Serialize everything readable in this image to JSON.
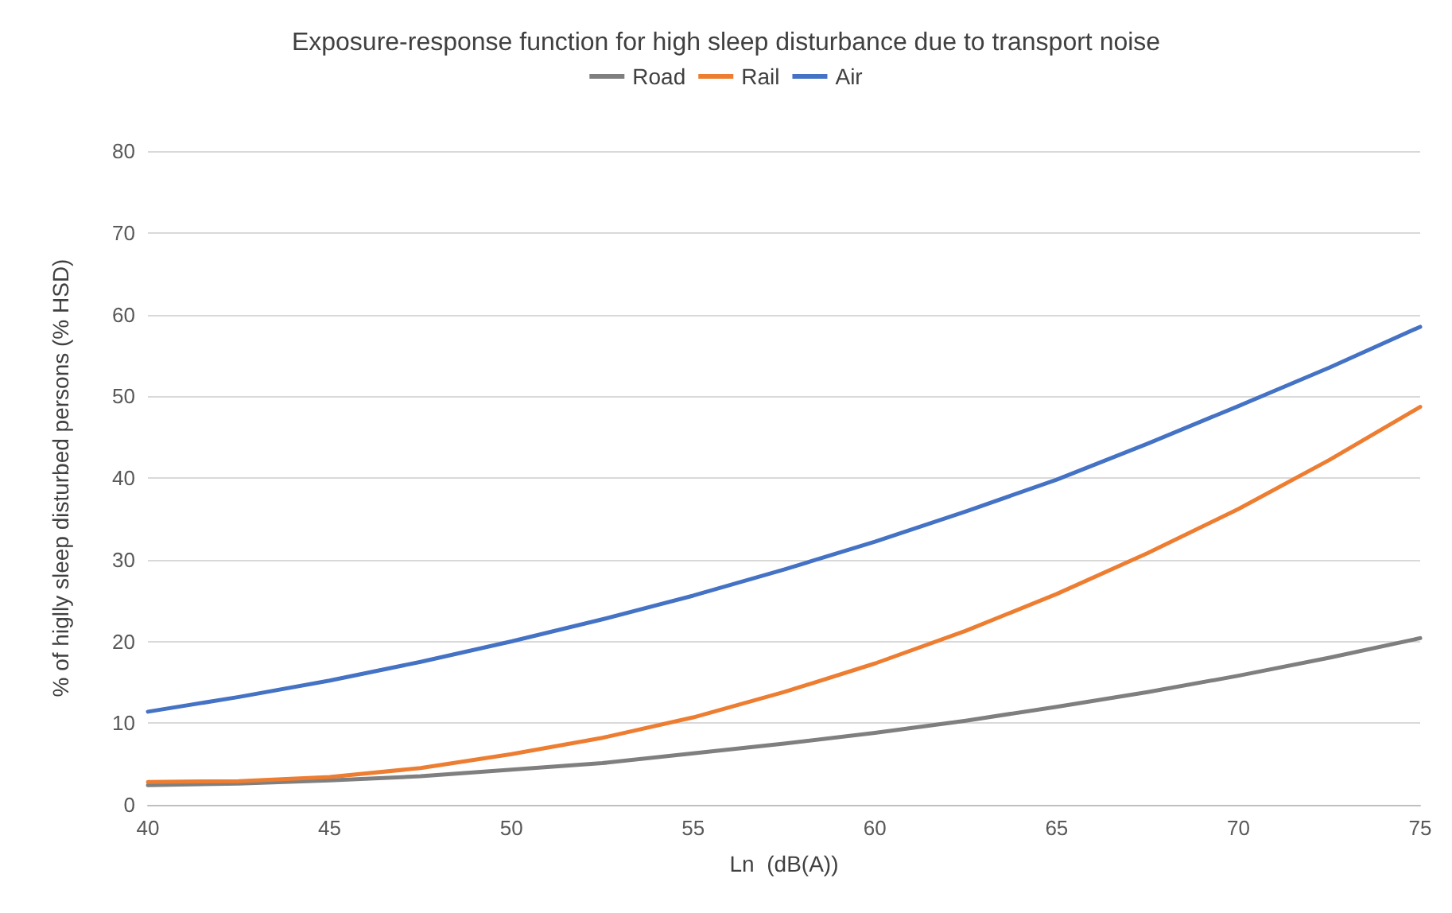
{
  "chart_data": {
    "type": "line",
    "title": "Exposure-response function for high sleep disturbance due to transport noise",
    "xlabel": "Ln  (dB(A))",
    "ylabel": "% of higlly sleep disturbed persons (% HSD)",
    "x": [
      40,
      42.5,
      45,
      47.5,
      50,
      52.5,
      55,
      57.5,
      60,
      62.5,
      65,
      67.5,
      70,
      72.5,
      75
    ],
    "series": [
      {
        "name": "Road",
        "color": "#7f7f7f",
        "values": [
          2.4,
          2.6,
          3.0,
          3.5,
          4.3,
          5.1,
          6.3,
          7.5,
          8.8,
          10.3,
          12.0,
          13.8,
          15.8,
          18.0,
          20.4
        ]
      },
      {
        "name": "Rail",
        "color": "#ed7d31",
        "values": [
          2.8,
          2.9,
          3.4,
          4.5,
          6.2,
          8.2,
          10.7,
          13.8,
          17.3,
          21.3,
          25.8,
          30.8,
          36.2,
          42.2,
          48.7
        ]
      },
      {
        "name": "Air",
        "color": "#4472c4",
        "values": [
          11.4,
          13.2,
          15.2,
          17.5,
          20.0,
          22.7,
          25.6,
          28.8,
          32.2,
          35.9,
          39.8,
          44.2,
          48.8,
          53.5,
          58.5
        ]
      }
    ],
    "xlim": [
      40,
      75
    ],
    "xticks": [
      40,
      45,
      50,
      55,
      60,
      65,
      70,
      75
    ],
    "ylim": [
      0,
      80
    ],
    "yticks": [
      0,
      10,
      20,
      30,
      40,
      50,
      60,
      70,
      80
    ],
    "grid": "y",
    "legend": "top",
    "marker": "none",
    "line_style": "solid"
  }
}
